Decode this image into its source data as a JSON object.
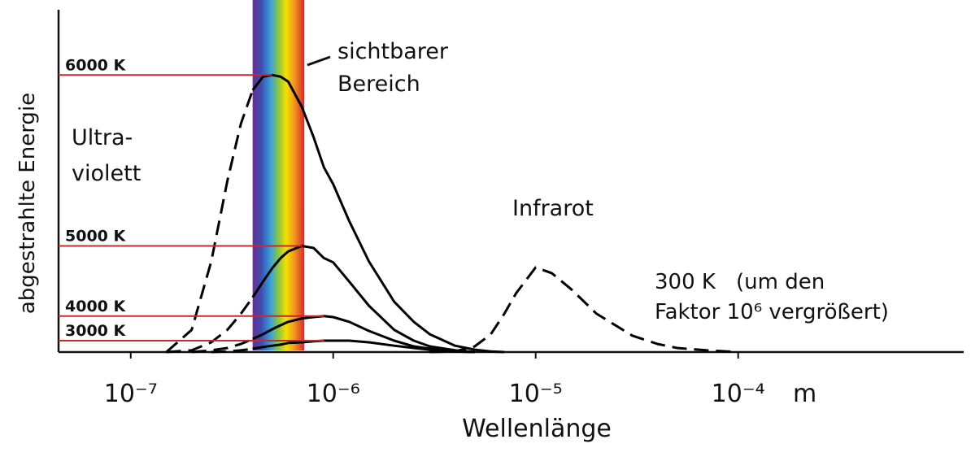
{
  "chart_data": {
    "type": "line",
    "x_label": "Wellenlänge",
    "x_unit": "m",
    "y_label": "abgestrahlte Energie",
    "log_x": true,
    "xlim": [
      4.4e-08,
      0.0013
    ],
    "xticks": [
      {
        "value": 1e-07,
        "label": "10⁻⁷"
      },
      {
        "value": 1e-06,
        "label": "10⁻⁶"
      },
      {
        "value": 1e-05,
        "label": "10⁻⁵"
      },
      {
        "value": 0.0001,
        "label": "10⁻⁴"
      }
    ],
    "ylim": [
      0,
      100
    ],
    "visible_range": [
      4e-07,
      7.2e-07
    ],
    "reference_color": "#c8282e",
    "x": [
      1.5e-07,
      2e-07,
      2.5e-07,
      3e-07,
      3.5e-07,
      4e-07,
      4.5e-07,
      5e-07,
      5.5e-07,
      6e-07,
      7e-07,
      8e-07,
      9e-07,
      1e-06,
      1.2e-06,
      1.5e-06,
      2e-06,
      2.5e-06,
      3e-06,
      4e-06,
      5e-06,
      6e-06,
      7e-06,
      8e-06,
      1e-05,
      1.2e-05,
      1.5e-05,
      2e-05,
      3e-05,
      4e-05,
      5e-05,
      7e-05,
      0.0001,
      0.0002,
      0.0005,
      0.001
    ],
    "series": [
      {
        "name": "6000 K",
        "color": "#000000",
        "values": [
          0,
          6.6,
          27,
          51,
          68,
          78,
          82,
          82.5,
          82,
          80.5,
          73,
          64,
          55,
          50,
          39,
          27,
          15,
          9,
          5.3,
          1.9,
          0.7,
          0.2,
          0,
          null,
          null,
          null,
          null,
          null,
          null,
          null,
          null,
          null,
          null,
          null,
          null,
          null
        ]
      },
      {
        "name": "5000 K",
        "color": "#000000",
        "values": [
          0,
          0.5,
          2.9,
          6.6,
          11.4,
          16.3,
          21,
          25,
          28,
          30,
          31.6,
          31,
          28,
          26.7,
          21,
          13.8,
          6.6,
          3.4,
          1.7,
          0.5,
          0,
          null,
          null,
          null,
          null,
          null,
          null,
          null,
          null,
          null,
          null,
          null,
          null,
          null,
          null,
          null
        ]
      },
      {
        "name": "4000 K",
        "color": "#000000",
        "values": [
          null,
          0,
          0.5,
          1.2,
          2.4,
          3.9,
          5.3,
          6.8,
          8,
          9,
          10,
          10.4,
          10.7,
          10.4,
          9,
          6.3,
          3.4,
          1.7,
          1,
          0.2,
          0,
          null,
          null,
          null,
          null,
          null,
          null,
          null,
          null,
          null,
          null,
          null,
          null,
          null,
          null,
          null
        ]
      },
      {
        "name": "3000 K",
        "color": "#000000",
        "values": [
          null,
          null,
          0,
          0.2,
          0.5,
          1,
          1.5,
          1.9,
          2.2,
          2.7,
          2.9,
          3.2,
          3.4,
          3.4,
          3.4,
          2.9,
          1.9,
          1.2,
          0.7,
          0.2,
          0,
          null,
          null,
          null,
          null,
          null,
          null,
          null,
          null,
          null,
          null,
          null,
          null,
          null,
          null,
          null
        ]
      },
      {
        "name": "300 K",
        "color": "#000000",
        "dashed": true,
        "values": [
          null,
          null,
          null,
          null,
          null,
          null,
          null,
          null,
          null,
          null,
          null,
          null,
          null,
          null,
          null,
          null,
          null,
          null,
          0,
          0.2,
          1.7,
          5.3,
          11.4,
          17.5,
          25.2,
          23.5,
          18.7,
          11.4,
          4.9,
          2.4,
          1.2,
          0.5,
          0,
          null,
          null,
          null
        ]
      }
    ],
    "annotations": {
      "visible": [
        "sichtbarer",
        "Bereich"
      ],
      "uv": [
        "Ultra-",
        "violett"
      ],
      "ir": "Infrarot",
      "scaled": [
        "(um den",
        "Faktor 10⁶ vergrößert)"
      ]
    }
  }
}
